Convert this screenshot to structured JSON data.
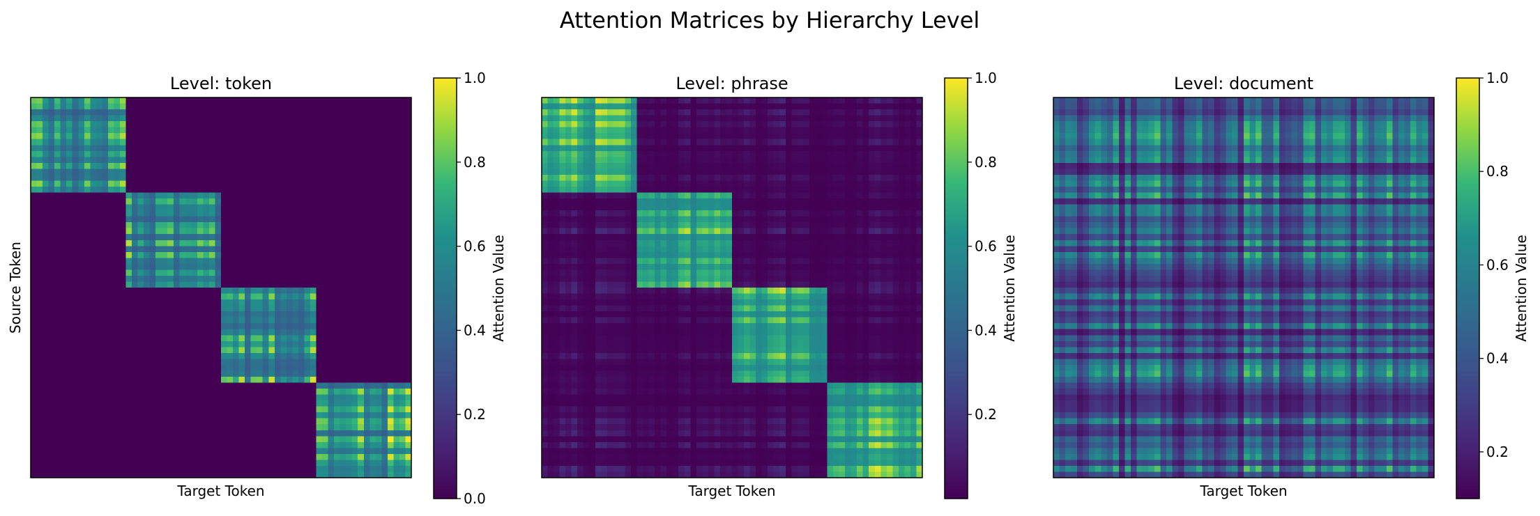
{
  "figure": {
    "title": "Attention Matrices by Hierarchy Level"
  },
  "chart_data": [
    {
      "type": "heatmap",
      "title": "Level: token",
      "xlabel": "Target Token",
      "ylabel": "Source Token",
      "colormap": "viridis",
      "grid": false,
      "size": 64,
      "blocks": 4,
      "value_range": [
        0.0,
        1.0
      ],
      "pattern": {
        "diagonal_blocks": {
          "min": 0.35,
          "max": 1.0
        },
        "off_diagonal": {
          "value": 0.0
        }
      },
      "colorbar": {
        "label": "Attention Value",
        "ticks": [
          0.0,
          0.2,
          0.4,
          0.6,
          0.8,
          1.0
        ],
        "tick_labels": [
          "0.0",
          "0.2",
          "0.4",
          "0.6",
          "0.8",
          "1.0"
        ],
        "vmin": 0.0,
        "vmax": 1.0
      }
    },
    {
      "type": "heatmap",
      "title": "Level: phrase",
      "xlabel": "Target Token",
      "ylabel": "",
      "colormap": "viridis",
      "grid": false,
      "size": 64,
      "blocks": 4,
      "value_range": [
        0.0,
        1.0
      ],
      "pattern": {
        "diagonal_blocks": {
          "min": 0.55,
          "max": 1.0
        },
        "off_diagonal": {
          "min": 0.0,
          "max": 0.18
        }
      },
      "colorbar": {
        "label": "Attention Value",
        "ticks": [
          0.2,
          0.4,
          0.6,
          0.8,
          1.0
        ],
        "tick_labels": [
          "0.2",
          "0.4",
          "0.6",
          "0.8",
          "1.0"
        ],
        "vmin": 0.0,
        "vmax": 1.0
      }
    },
    {
      "type": "heatmap",
      "title": "Level: document",
      "xlabel": "Target Token",
      "ylabel": "",
      "colormap": "viridis",
      "grid": false,
      "size": 64,
      "blocks": 1,
      "value_range": [
        0.1,
        1.0
      ],
      "pattern": {
        "uniform": {
          "min": 0.12,
          "max": 0.85
        }
      },
      "colorbar": {
        "label": "Attention Value",
        "ticks": [
          0.2,
          0.4,
          0.6,
          0.8,
          1.0
        ],
        "tick_labels": [
          "0.2",
          "0.4",
          "0.6",
          "0.8",
          "1.0"
        ],
        "vmin": 0.1,
        "vmax": 1.0
      }
    }
  ]
}
